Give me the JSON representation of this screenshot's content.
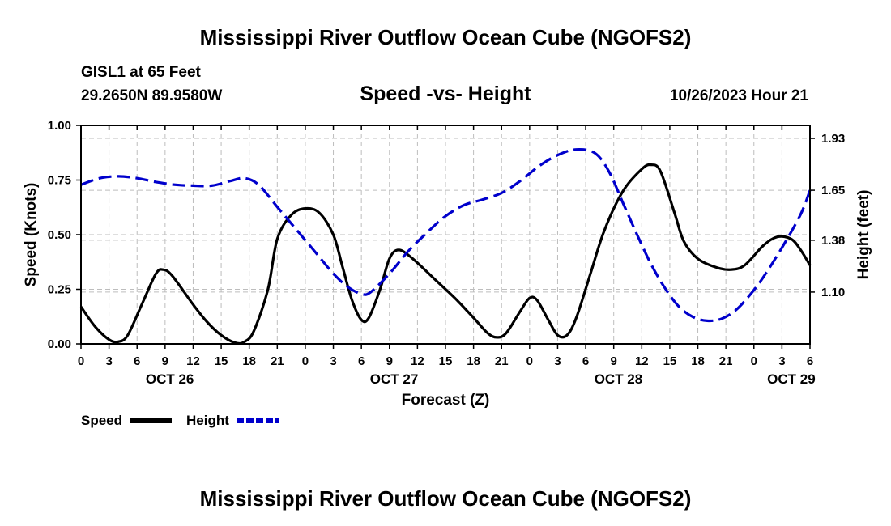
{
  "page_title": "Mississippi River Outflow Ocean Cube (NGOFS2)",
  "footer_title": "Mississippi River Outflow Ocean Cube (NGOFS2)",
  "chart_data": {
    "type": "line",
    "title": "Speed -vs- Height",
    "station": "GISL1 at 65 Feet",
    "location": "29.2650N  89.9580W",
    "timestamp": "10/26/2023 Hour 21",
    "xlabel": "Forecast (Z)",
    "ylabel": "Speed (Knots)",
    "y2label": "Height (feet)",
    "x_range_hours": [
      0,
      78
    ],
    "ylim": [
      0,
      1
    ],
    "y2lim": [
      0.82,
      2.0
    ],
    "x_ticks": [
      {
        "h": 0,
        "label": "0"
      },
      {
        "h": 3,
        "label": "3"
      },
      {
        "h": 6,
        "label": "6"
      },
      {
        "h": 9,
        "label": "9"
      },
      {
        "h": 12,
        "label": "12"
      },
      {
        "h": 15,
        "label": "15"
      },
      {
        "h": 18,
        "label": "18"
      },
      {
        "h": 21,
        "label": "21"
      },
      {
        "h": 24,
        "label": "0"
      },
      {
        "h": 27,
        "label": "3"
      },
      {
        "h": 30,
        "label": "6"
      },
      {
        "h": 33,
        "label": "9"
      },
      {
        "h": 36,
        "label": "12"
      },
      {
        "h": 39,
        "label": "15"
      },
      {
        "h": 42,
        "label": "18"
      },
      {
        "h": 45,
        "label": "21"
      },
      {
        "h": 48,
        "label": "0"
      },
      {
        "h": 51,
        "label": "3"
      },
      {
        "h": 54,
        "label": "6"
      },
      {
        "h": 57,
        "label": "9"
      },
      {
        "h": 60,
        "label": "12"
      },
      {
        "h": 63,
        "label": "15"
      },
      {
        "h": 66,
        "label": "18"
      },
      {
        "h": 69,
        "label": "21"
      },
      {
        "h": 72,
        "label": "0"
      },
      {
        "h": 75,
        "label": "3"
      },
      {
        "h": 78,
        "label": "6"
      }
    ],
    "date_labels": [
      {
        "h": 9.5,
        "label": "OCT 26"
      },
      {
        "h": 33.5,
        "label": "OCT 27"
      },
      {
        "h": 57.5,
        "label": "OCT 28"
      },
      {
        "h": 76,
        "label": "OCT 29"
      }
    ],
    "y_ticks": [
      {
        "v": 0.0,
        "label": "0.00"
      },
      {
        "v": 0.25,
        "label": "0.25"
      },
      {
        "v": 0.5,
        "label": "0.50"
      },
      {
        "v": 0.75,
        "label": "0.75"
      },
      {
        "v": 1.0,
        "label": "1.00"
      }
    ],
    "y2_ticks": [
      {
        "v": 1.1,
        "label": "1.10"
      },
      {
        "v": 1.38,
        "label": "1.38"
      },
      {
        "v": 1.65,
        "label": "1.65"
      },
      {
        "v": 1.93,
        "label": "1.93"
      }
    ],
    "series": [
      {
        "name": "Speed",
        "color": "#000000",
        "style": "solid",
        "axis": "left",
        "points": [
          [
            0,
            0.17
          ],
          [
            1.5,
            0.08
          ],
          [
            3,
            0.02
          ],
          [
            4,
            0.01
          ],
          [
            5,
            0.04
          ],
          [
            6.5,
            0.18
          ],
          [
            8,
            0.32
          ],
          [
            8.8,
            0.34
          ],
          [
            9.8,
            0.31
          ],
          [
            12,
            0.18
          ],
          [
            13.5,
            0.1
          ],
          [
            15,
            0.04
          ],
          [
            16.5,
            0.005
          ],
          [
            17.5,
            0.01
          ],
          [
            18.5,
            0.06
          ],
          [
            20,
            0.25
          ],
          [
            21,
            0.48
          ],
          [
            22.5,
            0.59
          ],
          [
            24,
            0.62
          ],
          [
            25.5,
            0.6
          ],
          [
            27,
            0.5
          ],
          [
            28,
            0.35
          ],
          [
            29,
            0.2
          ],
          [
            30,
            0.11
          ],
          [
            30.8,
            0.12
          ],
          [
            32,
            0.25
          ],
          [
            33,
            0.39
          ],
          [
            34,
            0.43
          ],
          [
            35.5,
            0.39
          ],
          [
            38,
            0.29
          ],
          [
            40,
            0.21
          ],
          [
            42,
            0.12
          ],
          [
            43.5,
            0.05
          ],
          [
            44.5,
            0.03
          ],
          [
            45.5,
            0.05
          ],
          [
            47,
            0.15
          ],
          [
            48,
            0.21
          ],
          [
            48.8,
            0.2
          ],
          [
            50,
            0.11
          ],
          [
            51,
            0.04
          ],
          [
            52,
            0.04
          ],
          [
            53,
            0.12
          ],
          [
            54.5,
            0.32
          ],
          [
            56,
            0.52
          ],
          [
            58,
            0.7
          ],
          [
            60,
            0.8
          ],
          [
            61,
            0.82
          ],
          [
            62,
            0.79
          ],
          [
            63.5,
            0.6
          ],
          [
            64.5,
            0.47
          ],
          [
            66,
            0.39
          ],
          [
            68,
            0.35
          ],
          [
            69.5,
            0.34
          ],
          [
            71,
            0.36
          ],
          [
            73,
            0.45
          ],
          [
            74.5,
            0.49
          ],
          [
            76,
            0.48
          ],
          [
            77,
            0.43
          ],
          [
            78,
            0.36
          ]
        ]
      },
      {
        "name": "Height",
        "color": "#0000cc",
        "style": "dashed",
        "axis": "right",
        "points": [
          [
            0,
            1.68
          ],
          [
            2,
            1.715
          ],
          [
            4,
            1.725
          ],
          [
            6,
            1.715
          ],
          [
            8,
            1.695
          ],
          [
            10,
            1.68
          ],
          [
            12,
            1.675
          ],
          [
            14,
            1.675
          ],
          [
            16,
            1.7
          ],
          [
            17.5,
            1.715
          ],
          [
            19,
            1.68
          ],
          [
            21,
            1.56
          ],
          [
            23,
            1.44
          ],
          [
            25,
            1.32
          ],
          [
            27,
            1.2
          ],
          [
            28.5,
            1.13
          ],
          [
            30,
            1.09
          ],
          [
            31,
            1.1
          ],
          [
            33,
            1.2
          ],
          [
            35,
            1.32
          ],
          [
            37,
            1.42
          ],
          [
            39,
            1.51
          ],
          [
            41,
            1.57
          ],
          [
            43,
            1.6
          ],
          [
            45,
            1.635
          ],
          [
            47,
            1.7
          ],
          [
            49,
            1.78
          ],
          [
            51,
            1.84
          ],
          [
            53,
            1.87
          ],
          [
            55,
            1.85
          ],
          [
            56.5,
            1.75
          ],
          [
            58,
            1.58
          ],
          [
            59.5,
            1.41
          ],
          [
            61,
            1.25
          ],
          [
            62.5,
            1.12
          ],
          [
            64,
            1.02
          ],
          [
            65.5,
            0.965
          ],
          [
            67,
            0.945
          ],
          [
            68.5,
            0.955
          ],
          [
            70,
            1.0
          ],
          [
            71.5,
            1.08
          ],
          [
            73,
            1.18
          ],
          [
            75,
            1.34
          ],
          [
            77,
            1.52
          ],
          [
            78,
            1.65
          ]
        ]
      }
    ],
    "legend": [
      {
        "label": "Speed",
        "color": "#000000",
        "style": "solid"
      },
      {
        "label": "Height",
        "color": "#0000cc",
        "style": "dashed"
      }
    ]
  }
}
